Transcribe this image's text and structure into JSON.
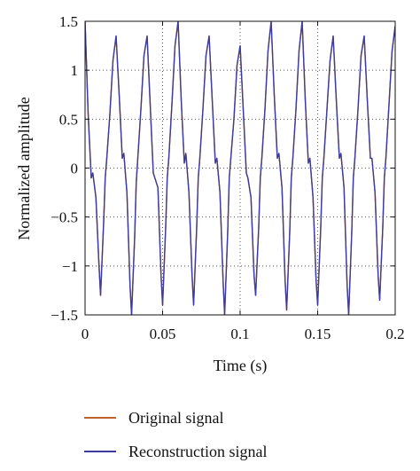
{
  "chart_data": {
    "type": "line",
    "xlabel": "Time (s)",
    "ylabel": "Normalized amplitude",
    "xlim": [
      0,
      0.2
    ],
    "ylim": [
      -1.5,
      1.5
    ],
    "xticks": [
      0,
      0.05,
      0.1,
      0.15,
      0.2
    ],
    "xtick_labels": [
      "0",
      "0.05",
      "0.1",
      "0.15",
      "0.2"
    ],
    "yticks": [
      1.5,
      1,
      0.5,
      0,
      -0.5,
      -1,
      -1.5
    ],
    "ytick_labels": [
      "1.5",
      "1",
      "0.5",
      "0",
      "−0.5",
      "−1",
      "−1.5"
    ],
    "grid": "dotted",
    "legend_position": "bottom",
    "series": [
      {
        "name": "Original signal",
        "color": "#c0622f",
        "x": [
          0,
          0.002,
          0.004,
          0.005,
          0.007,
          0.009,
          0.01,
          0.012,
          0.013,
          0.014,
          0.016,
          0.018,
          0.02,
          0.022,
          0.024,
          0.025,
          0.027,
          0.029,
          0.03,
          0.032,
          0.033,
          0.034,
          0.036,
          0.038,
          0.04,
          0.042,
          0.044,
          0.045,
          0.047,
          0.049,
          0.05,
          0.052,
          0.053,
          0.054,
          0.056,
          0.058,
          0.06,
          0.062,
          0.064,
          0.065,
          0.067,
          0.069,
          0.07,
          0.072,
          0.073,
          0.074,
          0.076,
          0.078,
          0.08,
          0.082,
          0.084,
          0.085,
          0.087,
          0.089,
          0.09,
          0.092,
          0.093,
          0.094,
          0.096,
          0.098,
          0.1,
          0.102,
          0.104,
          0.105,
          0.107,
          0.109,
          0.11,
          0.112,
          0.113,
          0.114,
          0.116,
          0.118,
          0.12,
          0.122,
          0.124,
          0.125,
          0.127,
          0.129,
          0.13,
          0.132,
          0.133,
          0.134,
          0.136,
          0.138,
          0.14,
          0.142,
          0.144,
          0.145,
          0.147,
          0.149,
          0.15,
          0.152,
          0.153,
          0.154,
          0.156,
          0.158,
          0.16,
          0.162,
          0.164,
          0.165,
          0.167,
          0.169,
          0.17,
          0.172,
          0.173,
          0.174,
          0.176,
          0.178,
          0.18,
          0.182,
          0.184,
          0.185,
          0.187,
          0.189,
          0.19,
          0.192,
          0.193,
          0.194,
          0.196,
          0.198,
          0.2
        ],
        "y": [
          1.5,
          0.55,
          -0.1,
          -0.05,
          -0.3,
          -1.0,
          -1.3,
          -0.55,
          -0.1,
          0.1,
          0.55,
          1.1,
          1.35,
          0.75,
          0.1,
          0.15,
          -0.25,
          -1.2,
          -1.5,
          -0.7,
          -0.15,
          0.1,
          0.6,
          1.15,
          1.35,
          0.65,
          -0.05,
          -0.1,
          -0.2,
          -1.1,
          -1.4,
          -0.6,
          -0.1,
          0.1,
          0.65,
          1.25,
          1.5,
          0.7,
          0.05,
          0.15,
          -0.25,
          -1.1,
          -1.4,
          -0.6,
          -0.1,
          0.1,
          0.6,
          1.15,
          1.35,
          0.7,
          0.05,
          0.1,
          -0.25,
          -1.15,
          -1.5,
          -0.65,
          -0.1,
          0.1,
          0.5,
          1.05,
          1.25,
          0.6,
          -0.05,
          -0.1,
          -0.3,
          -1.1,
          -1.3,
          -0.6,
          -0.1,
          0.1,
          0.6,
          1.2,
          1.5,
          0.75,
          0.1,
          0.15,
          -0.2,
          -1.15,
          -1.45,
          -0.65,
          -0.1,
          0.1,
          0.6,
          1.2,
          1.5,
          0.7,
          0.05,
          0.1,
          -0.3,
          -1.15,
          -1.4,
          -0.6,
          -0.1,
          0.1,
          0.6,
          1.1,
          1.35,
          0.7,
          0.1,
          0.15,
          -0.2,
          -1.2,
          -1.5,
          -0.65,
          -0.1,
          0.1,
          0.6,
          1.15,
          1.35,
          0.7,
          0.1,
          0.1,
          -0.25,
          -1.1,
          -1.35,
          -0.6,
          -0.1,
          0.1,
          0.65,
          1.2,
          1.45
        ]
      },
      {
        "name": "Reconstruction signal",
        "color": "#3c3ca0",
        "x": [
          0,
          0.002,
          0.004,
          0.005,
          0.007,
          0.009,
          0.01,
          0.012,
          0.013,
          0.014,
          0.016,
          0.018,
          0.02,
          0.022,
          0.024,
          0.025,
          0.027,
          0.029,
          0.03,
          0.032,
          0.033,
          0.034,
          0.036,
          0.038,
          0.04,
          0.042,
          0.044,
          0.045,
          0.047,
          0.049,
          0.05,
          0.052,
          0.053,
          0.054,
          0.056,
          0.058,
          0.06,
          0.062,
          0.064,
          0.065,
          0.067,
          0.069,
          0.07,
          0.072,
          0.073,
          0.074,
          0.076,
          0.078,
          0.08,
          0.082,
          0.084,
          0.085,
          0.087,
          0.089,
          0.09,
          0.092,
          0.093,
          0.094,
          0.096,
          0.098,
          0.1,
          0.102,
          0.104,
          0.105,
          0.107,
          0.109,
          0.11,
          0.112,
          0.113,
          0.114,
          0.116,
          0.118,
          0.12,
          0.122,
          0.124,
          0.125,
          0.127,
          0.129,
          0.13,
          0.132,
          0.133,
          0.134,
          0.136,
          0.138,
          0.14,
          0.142,
          0.144,
          0.145,
          0.147,
          0.149,
          0.15,
          0.152,
          0.153,
          0.154,
          0.156,
          0.158,
          0.16,
          0.162,
          0.164,
          0.165,
          0.167,
          0.169,
          0.17,
          0.172,
          0.173,
          0.174,
          0.176,
          0.178,
          0.18,
          0.182,
          0.184,
          0.185,
          0.187,
          0.189,
          0.19,
          0.192,
          0.193,
          0.194,
          0.196,
          0.198,
          0.2
        ],
        "y": [
          1.5,
          0.55,
          -0.1,
          -0.05,
          -0.3,
          -1.0,
          -1.3,
          -0.55,
          -0.1,
          0.1,
          0.55,
          1.1,
          1.35,
          0.75,
          0.1,
          0.15,
          -0.25,
          -1.2,
          -1.5,
          -0.7,
          -0.15,
          0.1,
          0.6,
          1.15,
          1.35,
          0.65,
          -0.05,
          -0.1,
          -0.2,
          -1.1,
          -1.4,
          -0.6,
          -0.1,
          0.1,
          0.65,
          1.25,
          1.5,
          0.7,
          0.05,
          0.15,
          -0.25,
          -1.1,
          -1.4,
          -0.6,
          -0.1,
          0.1,
          0.6,
          1.15,
          1.35,
          0.7,
          0.05,
          0.1,
          -0.25,
          -1.15,
          -1.5,
          -0.65,
          -0.1,
          0.1,
          0.5,
          1.05,
          1.25,
          0.6,
          -0.05,
          -0.1,
          -0.3,
          -1.1,
          -1.3,
          -0.6,
          -0.1,
          0.1,
          0.6,
          1.2,
          1.5,
          0.75,
          0.1,
          0.15,
          -0.2,
          -1.15,
          -1.45,
          -0.65,
          -0.1,
          0.1,
          0.6,
          1.2,
          1.5,
          0.7,
          0.05,
          0.1,
          -0.3,
          -1.15,
          -1.4,
          -0.6,
          -0.1,
          0.1,
          0.6,
          1.1,
          1.35,
          0.7,
          0.1,
          0.15,
          -0.2,
          -1.2,
          -1.5,
          -0.65,
          -0.1,
          0.1,
          0.6,
          1.15,
          1.35,
          0.7,
          0.1,
          0.1,
          -0.25,
          -1.1,
          -1.35,
          -0.6,
          -0.1,
          0.1,
          0.65,
          1.2,
          1.45
        ]
      }
    ]
  },
  "legend": {
    "items": [
      {
        "label": "Original signal",
        "color": "#c0622f"
      },
      {
        "label": "Reconstruction signal",
        "color": "#3c3ca0"
      }
    ]
  }
}
